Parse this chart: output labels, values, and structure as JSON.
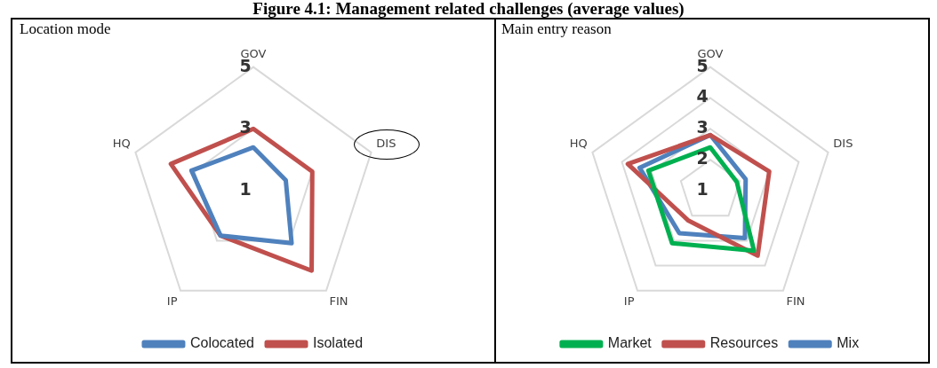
{
  "chart_data": [
    {
      "type": "radar",
      "title": "Location mode",
      "annotations": [
        "Figure 4.1: Management related challenges (average values)"
      ],
      "categories": [
        "GOV",
        "DIS",
        "FIN",
        "IP",
        "HQ"
      ],
      "ylim": [
        1,
        5
      ],
      "yticks": [
        1,
        3,
        5
      ],
      "grid": true,
      "legend": "bottom",
      "series": [
        {
          "name": "Colocated",
          "color": "#4f81bd",
          "values": [
            2.4,
            2.1,
            3.1,
            2.8,
            3.1
          ]
        },
        {
          "name": "Isolated",
          "color": "#c0504d",
          "values": [
            3.0,
            3.0,
            4.2,
            2.8,
            3.8
          ]
        }
      ]
    },
    {
      "type": "radar",
      "title": "Main entry reason",
      "categories": [
        "GOV",
        "DIS",
        "FIN",
        "IP",
        "HQ"
      ],
      "ylim": [
        1,
        5
      ],
      "yticks": [
        1,
        2,
        3,
        4,
        5
      ],
      "grid": true,
      "legend": "bottom",
      "series": [
        {
          "name": "Market",
          "color": "#00b050",
          "values": [
            2.4,
            1.9,
            3.4,
            3.1,
            3.1
          ]
        },
        {
          "name": "Resources",
          "color": "#c0504d",
          "values": [
            2.8,
            3.0,
            3.6,
            2.2,
            3.8
          ]
        },
        {
          "name": "Mix",
          "color": "#4f81bd",
          "values": [
            2.8,
            2.2,
            2.9,
            2.7,
            3.4
          ]
        }
      ]
    }
  ]
}
